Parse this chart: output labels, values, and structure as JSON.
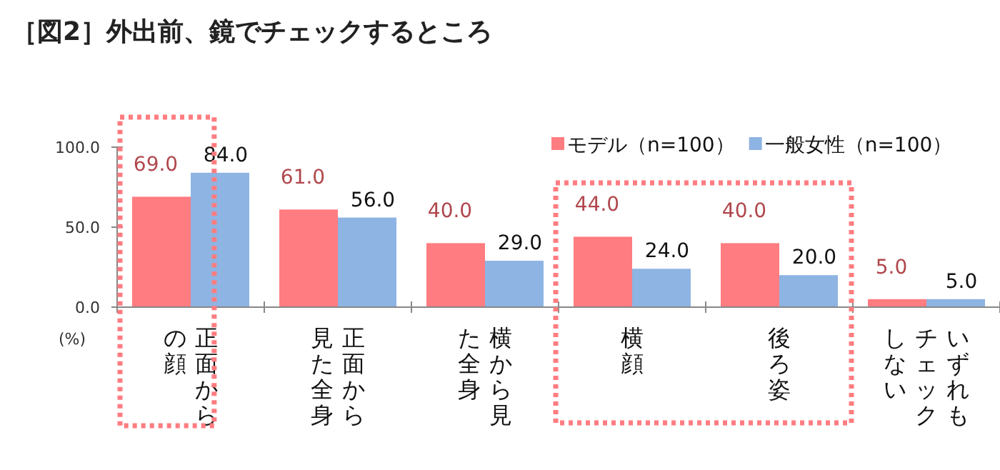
{
  "chart_data": {
    "type": "bar",
    "title": "［図2］外出前、鏡でチェックするところ",
    "categories": [
      "正面からの顔",
      "正面から見た全身",
      "横から見た全身",
      "横顔",
      "後ろ姿",
      "いずれもチェックしない"
    ],
    "series": [
      {
        "name": "モデル（n=100）",
        "color": "#ff7c80",
        "values": [
          69,
          61,
          40,
          44,
          40,
          5
        ],
        "value_labels": [
          "69.0",
          "61.0",
          "40.0",
          "44.0",
          "40.0",
          "5.0"
        ]
      },
      {
        "name": "一般女性（n=100）",
        "color": "#8eb4e3",
        "values": [
          84,
          56,
          29,
          24,
          20,
          5
        ],
        "value_labels": [
          "84.0",
          "56.0",
          "29.0",
          "24.0",
          "20.0",
          "5.0"
        ]
      }
    ],
    "ylim": [
      0,
      100
    ],
    "yticks": [
      {
        "value": 0,
        "label": "0.0"
      },
      {
        "value": 50,
        "label": "50.0"
      },
      {
        "value": 100,
        "label": "100.0"
      }
    ],
    "annotations": [
      "(%)"
    ],
    "grid": false,
    "legend": "top right"
  }
}
